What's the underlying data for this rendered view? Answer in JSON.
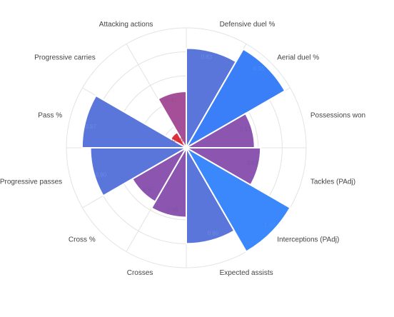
{
  "chart_data": {
    "type": "polar-bar",
    "title": "",
    "categories": [
      "Defensive duel %",
      "Aerial duel %",
      "Possessions won",
      "Tackles (PAdj)",
      "Interceptions (PAdj)",
      "Expected assists",
      "Crosses",
      "Cross %",
      "Progressive passes",
      "Pass %",
      "Progressive carries",
      "Attacking actions"
    ],
    "values": [
      0.83,
      0.95,
      0.57,
      0.62,
      1.0,
      0.8,
      0.58,
      0.52,
      0.8,
      0.87,
      0.15,
      0.47
    ],
    "value_labels": [
      "0.83",
      "0.95",
      "0.57",
      "0.62",
      "1.00",
      "0.80",
      "0.58",
      "0.52",
      "0.80",
      "0.87",
      "0.15",
      "0.47"
    ],
    "colors": [
      "#5a76db",
      "#3a7ff7",
      "#8c55b0",
      "#8c55b0",
      "#3a88fb",
      "#5a76db",
      "#8c55b0",
      "#8c55b0",
      "#5a76db",
      "#5a76db",
      "#e0303d",
      "#a54f98"
    ],
    "label_colors": [
      "#6a8ae0",
      "#4a8ff7",
      "#7a55aa",
      "#7a55aa",
      "#4a8ff7",
      "#6a8ae0",
      "#7a55aa",
      "#7a55aa",
      "#6a8ae0",
      "#6a8ae0",
      "#c03040",
      "#9a4f90"
    ],
    "rlim": [
      0,
      1
    ],
    "grid": true,
    "legend": "none"
  }
}
